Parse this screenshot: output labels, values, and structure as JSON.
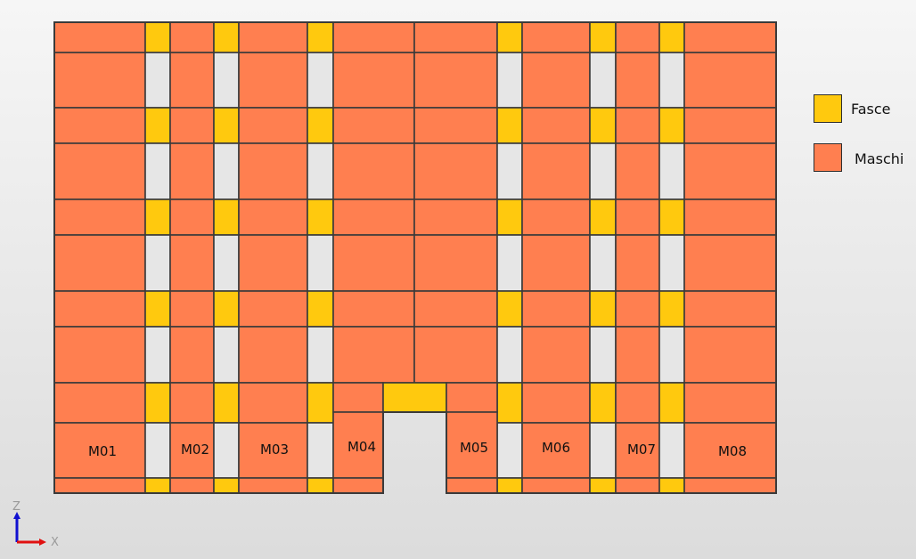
{
  "colors": {
    "fasce": "#FFC90E",
    "maschi": "#FF7F50",
    "opening": "#E6E6E6",
    "edge": "#3a3a3a",
    "axis_z": "#1010d0",
    "axis_x": "#e01010"
  },
  "legend": [
    {
      "key": "fasce",
      "label": "Fasce"
    },
    {
      "key": "maschi",
      "label": "Maschi"
    }
  ],
  "piers": [
    "M01",
    "M02",
    "M03",
    "M04",
    "M05",
    "M06",
    "M07",
    "M08"
  ],
  "axes": {
    "vertical": "Z",
    "horizontal": "X"
  }
}
